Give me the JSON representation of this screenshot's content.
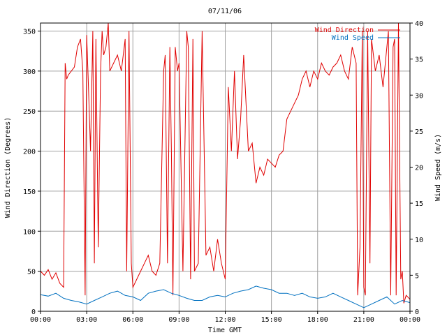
{
  "chart_data": {
    "type": "line",
    "title": "07/11/06",
    "xlabel": "Time GMT",
    "ylabel": "Wind Direction (Degrees)",
    "y2label": "Wind Speed (m/s)",
    "xlim": [
      0,
      24
    ],
    "ylim": [
      0,
      360
    ],
    "y2lim": [
      0,
      40
    ],
    "grid": true,
    "legend_position": "top-right",
    "x_tick_labels": [
      "00:00",
      "03:00",
      "06:00",
      "09:00",
      "12:00",
      "15:00",
      "18:00",
      "21:00",
      "00:00"
    ],
    "y_ticks": [
      0,
      50,
      100,
      150,
      200,
      250,
      300,
      350
    ],
    "y2_ticks": [
      0,
      5,
      10,
      15,
      20,
      25,
      30,
      35,
      40
    ],
    "series": [
      {
        "name": "Wind Direction",
        "color": "#e00000",
        "axis": "left",
        "x": [
          0,
          0.25,
          0.5,
          0.75,
          1,
          1.25,
          1.5,
          1.6,
          1.7,
          1.8,
          2,
          2.2,
          2.4,
          2.6,
          2.75,
          2.9,
          3.0,
          3.1,
          3.25,
          3.4,
          3.5,
          3.6,
          3.75,
          3.9,
          4.0,
          4.1,
          4.25,
          4.4,
          4.5,
          4.75,
          5,
          5.25,
          5.5,
          5.6,
          5.75,
          5.9,
          6.0,
          6.25,
          6.5,
          6.75,
          7,
          7.25,
          7.5,
          7.75,
          8,
          8.1,
          8.25,
          8.4,
          8.5,
          8.6,
          8.75,
          8.9,
          9.0,
          9.25,
          9.5,
          9.6,
          9.75,
          9.9,
          10.0,
          10.25,
          10.5,
          10.75,
          11,
          11.25,
          11.5,
          11.75,
          12,
          12.2,
          12.4,
          12.6,
          12.8,
          13,
          13.2,
          13.5,
          13.75,
          14,
          14.25,
          14.5,
          14.75,
          15,
          15.25,
          15.5,
          15.75,
          16,
          16.25,
          16.5,
          16.75,
          17,
          17.25,
          17.5,
          17.75,
          18,
          18.25,
          18.5,
          18.75,
          19,
          19.25,
          19.5,
          19.75,
          20,
          20.25,
          20.5,
          20.6,
          20.75,
          20.9,
          21.0,
          21.1,
          21.25,
          21.4,
          21.5,
          21.75,
          22,
          22.25,
          22.5,
          22.6,
          22.75,
          22.9,
          23.0,
          23.1,
          23.25,
          23.4,
          23.5,
          23.6,
          23.75,
          24
        ],
        "y": [
          50,
          45,
          52,
          40,
          48,
          35,
          30,
          310,
          290,
          295,
          300,
          305,
          330,
          340,
          300,
          20,
          345,
          290,
          200,
          350,
          60,
          340,
          80,
          300,
          350,
          320,
          330,
          360,
          300,
          310,
          320,
          300,
          340,
          50,
          350,
          60,
          30,
          40,
          50,
          60,
          70,
          50,
          45,
          60,
          300,
          320,
          60,
          330,
          200,
          20,
          330,
          300,
          310,
          50,
          350,
          330,
          40,
          340,
          50,
          60,
          350,
          70,
          80,
          50,
          90,
          60,
          40,
          280,
          200,
          300,
          190,
          240,
          320,
          200,
          210,
          160,
          180,
          170,
          190,
          185,
          180,
          195,
          200,
          240,
          250,
          260,
          270,
          290,
          300,
          280,
          300,
          290,
          310,
          300,
          295,
          305,
          310,
          320,
          300,
          290,
          330,
          310,
          20,
          80,
          350,
          30,
          20,
          350,
          60,
          340,
          300,
          320,
          280,
          330,
          350,
          20,
          330,
          340,
          20,
          360,
          40,
          50,
          10,
          20,
          15
        ]
      },
      {
        "name": "Wind Speed",
        "color": "#0070c0",
        "axis": "right",
        "x": [
          0,
          0.5,
          1,
          1.5,
          2,
          2.5,
          3,
          3.5,
          4,
          4.5,
          5,
          5.5,
          6,
          6.5,
          7,
          7.5,
          8,
          8.5,
          9,
          9.5,
          10,
          10.5,
          11,
          11.5,
          12,
          12.5,
          13,
          13.5,
          14,
          14.5,
          15,
          15.5,
          16,
          16.5,
          17,
          17.5,
          18,
          18.5,
          19,
          19.5,
          20,
          20.5,
          21,
          21.5,
          22,
          22.5,
          23,
          23.5,
          24
        ],
        "y": [
          2.3,
          2.1,
          2.5,
          1.8,
          1.5,
          1.3,
          1.0,
          1.5,
          2.0,
          2.5,
          2.8,
          2.2,
          2.0,
          1.5,
          2.5,
          2.8,
          3.0,
          2.5,
          2.2,
          1.8,
          1.5,
          1.5,
          2.0,
          2.2,
          2.0,
          2.5,
          2.8,
          3.0,
          3.5,
          3.2,
          3.0,
          2.5,
          2.5,
          2.2,
          2.5,
          2.0,
          1.8,
          2.0,
          2.5,
          2.0,
          1.5,
          1.0,
          0.5,
          1.0,
          1.5,
          2.0,
          1.0,
          1.5,
          1.2
        ]
      }
    ]
  }
}
